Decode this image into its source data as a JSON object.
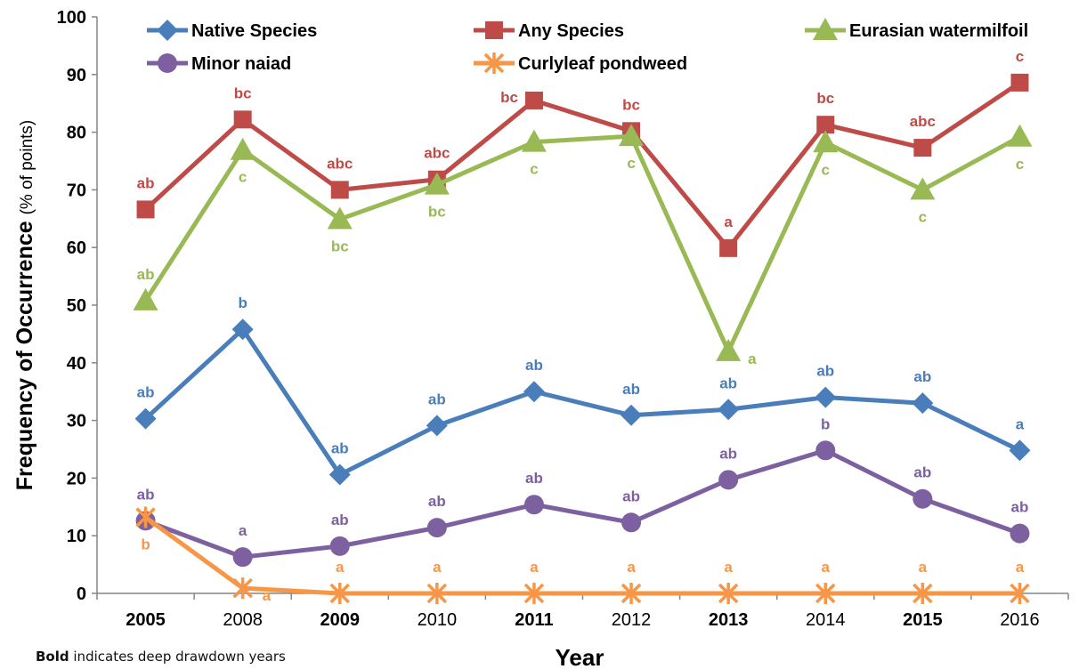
{
  "chart_data": {
    "type": "line",
    "title": "",
    "xlabel": "Year",
    "ylabel": "Frequency of Occurrence",
    "ylabel_unit": "(% of points)",
    "ylim": [
      0,
      100
    ],
    "yticks": [
      0,
      10,
      20,
      30,
      40,
      50,
      60,
      70,
      80,
      90,
      100
    ],
    "grid": false,
    "legend_position": "top",
    "categories": [
      "2005",
      "2008",
      "2009",
      "2010",
      "2011",
      "2012",
      "2013",
      "2014",
      "2015",
      "2016"
    ],
    "bold_categories": [
      "2005",
      "2009",
      "2011",
      "2013",
      "2015"
    ],
    "series": [
      {
        "name": "Native Species",
        "color": "#4a7ebb",
        "marker": "diamond",
        "values": [
          30.3,
          45.8,
          20.6,
          29.1,
          35.0,
          30.9,
          31.9,
          34.0,
          33.0,
          24.8
        ],
        "labels": [
          "ab",
          "b",
          "ab",
          "ab",
          "ab",
          "ab",
          "ab",
          "ab",
          "ab",
          "a"
        ],
        "label_pos": [
          "above",
          "above",
          "above",
          "above",
          "above",
          "above",
          "above",
          "above",
          "above",
          "above"
        ]
      },
      {
        "name": "Any Species",
        "color": "#be4b48",
        "marker": "square",
        "values": [
          66.6,
          82.2,
          70.0,
          71.8,
          85.5,
          80.2,
          59.9,
          81.3,
          77.3,
          88.6
        ],
        "labels": [
          "ab",
          "bc",
          "abc",
          "abc",
          "bc",
          "bc",
          "a",
          "bc",
          "abc",
          "c"
        ],
        "label_pos": [
          "above",
          "above",
          "above",
          "above",
          "left",
          "above",
          "above",
          "above",
          "above",
          "above"
        ]
      },
      {
        "name": "Eurasian watermilfoil",
        "color": "#98b954",
        "marker": "triangle",
        "values": [
          50.8,
          76.9,
          64.9,
          70.9,
          78.3,
          79.3,
          42.0,
          78.2,
          70.0,
          79.2
        ],
        "labels": [
          "ab",
          "c",
          "bc",
          "bc",
          "c",
          "c",
          "a",
          "c",
          "c",
          "c"
        ],
        "label_pos": [
          "above",
          "below",
          "below",
          "below",
          "below",
          "below",
          "right",
          "below",
          "below",
          "below"
        ]
      },
      {
        "name": "Minor naiad",
        "color": "#7d60a0",
        "marker": "circle",
        "values": [
          12.6,
          6.3,
          8.2,
          11.4,
          15.4,
          12.3,
          19.7,
          24.8,
          16.4,
          10.4
        ],
        "labels": [
          "ab",
          "a",
          "ab",
          "ab",
          "ab",
          "ab",
          "ab",
          "b",
          "ab",
          "ab"
        ],
        "label_pos": [
          "above",
          "above",
          "above",
          "above",
          "above",
          "above",
          "above",
          "above",
          "above",
          "above"
        ]
      },
      {
        "name": "Curlyleaf pondweed",
        "color": "#f79646",
        "marker": "star",
        "values": [
          13.2,
          0.9,
          0.0,
          0.0,
          0.0,
          0.0,
          0.0,
          0.0,
          0.0,
          0.0
        ],
        "labels": [
          "b",
          "a",
          "a",
          "a",
          "a",
          "a",
          "a",
          "a",
          "a",
          "a"
        ],
        "label_pos": [
          "below",
          "right",
          "above",
          "above",
          "above",
          "above",
          "above",
          "above",
          "above",
          "above"
        ]
      }
    ]
  },
  "footnote": {
    "bold": "Bold",
    "rest": " indicates deep drawdown years"
  }
}
